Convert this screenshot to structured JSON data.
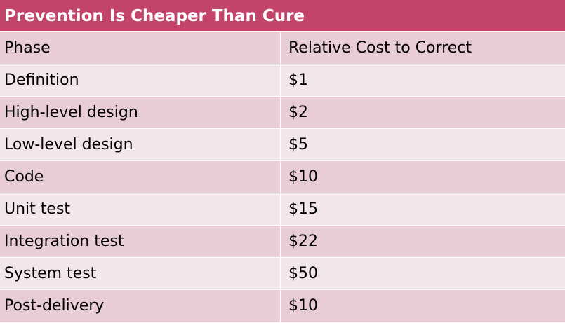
{
  "title": "Prevention Is Cheaper Than Cure",
  "columns": {
    "phase": "Phase",
    "cost": "Relative Cost to Correct"
  },
  "rows": [
    {
      "phase": "Definition",
      "cost": "$1"
    },
    {
      "phase": "High-level design",
      "cost": "$2"
    },
    {
      "phase": "Low-level design",
      "cost": "$5"
    },
    {
      "phase": "Code",
      "cost": "$10"
    },
    {
      "phase": "Unit test",
      "cost": "$15"
    },
    {
      "phase": "Integration test",
      "cost": "$22"
    },
    {
      "phase": "System test",
      "cost": "$50"
    },
    {
      "phase": "Post-delivery",
      "cost": "$10"
    }
  ],
  "colors": {
    "header": "#c2446b",
    "row_dark": "#e8cdd4",
    "row_light": "#f3e6ea"
  }
}
